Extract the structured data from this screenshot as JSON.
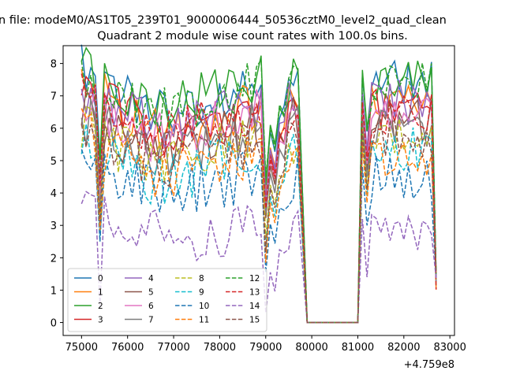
{
  "suptitle": "n file: modeM0/AS1T05_239T01_9000006444_50536cztM0_level2_quad_clean",
  "chart_data": {
    "type": "line",
    "title": "Quadrant 2 module wise count rates with 100.0s bins.",
    "xlabel": "",
    "ylabel": "",
    "x_offset_label": "+4.759e8",
    "xlim": [
      74600,
      83100
    ],
    "ylim": [
      -0.4,
      8.55
    ],
    "x_ticks": [
      75000,
      76000,
      77000,
      78000,
      79000,
      80000,
      81000,
      82000,
      83000
    ],
    "x_tick_labels": [
      "75000",
      "76000",
      "77000",
      "78000",
      "79000",
      "80000",
      "81000",
      "82000",
      "83000"
    ],
    "y_ticks": [
      0,
      1,
      2,
      3,
      4,
      5,
      6,
      7,
      8
    ],
    "y_tick_labels": [
      "0",
      "1",
      "2",
      "3",
      "4",
      "5",
      "6",
      "7",
      "8"
    ],
    "legend_position": "lower-left",
    "legend_columns": 4,
    "segments": [
      {
        "x_start": 75000,
        "x_end": 79700,
        "step": 100
      },
      {
        "x_start": 79900,
        "x_end": 81000,
        "step": 100
      },
      {
        "x_start": 81100,
        "x_end": 82700,
        "step": 100
      }
    ],
    "gap_level": 0,
    "series": [
      {
        "name": "0",
        "color": "#1f77b4",
        "dash": "solid",
        "levels": [
          7.8,
          6.5,
          6.7,
          7.4,
          7.2
        ]
      },
      {
        "name": "1",
        "color": "#ff7f0e",
        "dash": "solid",
        "levels": [
          7.5,
          5.9,
          6.0,
          6.7,
          6.9
        ]
      },
      {
        "name": "2",
        "color": "#2ca02c",
        "dash": "solid",
        "levels": [
          8.0,
          6.8,
          6.9,
          7.5,
          7.5
        ]
      },
      {
        "name": "3",
        "color": "#d62728",
        "dash": "solid",
        "levels": [
          7.4,
          5.9,
          5.9,
          6.6,
          6.6
        ]
      },
      {
        "name": "4",
        "color": "#9467bd",
        "dash": "solid",
        "levels": [
          7.0,
          6.1,
          6.2,
          6.8,
          6.7
        ]
      },
      {
        "name": "5",
        "color": "#8c564b",
        "dash": "solid",
        "levels": [
          6.6,
          5.5,
          5.6,
          6.2,
          6.3
        ]
      },
      {
        "name": "6",
        "color": "#e377c2",
        "dash": "solid",
        "levels": [
          6.8,
          5.7,
          5.8,
          6.4,
          6.5
        ]
      },
      {
        "name": "7",
        "color": "#7f7f7f",
        "dash": "solid",
        "levels": [
          6.3,
          5.3,
          5.4,
          6.0,
          6.0
        ]
      },
      {
        "name": "8",
        "color": "#bcbd22",
        "dash": "dashed",
        "levels": [
          6.0,
          4.9,
          5.0,
          5.7,
          5.6
        ]
      },
      {
        "name": "9",
        "color": "#17becf",
        "dash": "dashed",
        "levels": [
          5.6,
          4.4,
          4.5,
          5.4,
          5.2
        ]
      },
      {
        "name": "10",
        "color": "#1f77b4",
        "dash": "dashed",
        "levels": [
          4.9,
          4.2,
          4.1,
          4.5,
          4.4
        ]
      },
      {
        "name": "11",
        "color": "#ff7f0e",
        "dash": "dashed",
        "levels": [
          5.9,
          4.5,
          4.7,
          5.2,
          5.0
        ]
      },
      {
        "name": "12",
        "color": "#2ca02c",
        "dash": "dashed",
        "levels": [
          7.6,
          6.4,
          6.6,
          7.4,
          7.3
        ]
      },
      {
        "name": "13",
        "color": "#d62728",
        "dash": "dashed",
        "levels": [
          7.1,
          5.7,
          5.9,
          6.5,
          6.4
        ]
      },
      {
        "name": "14",
        "color": "#9467bd",
        "dash": "dashed",
        "levels": [
          3.6,
          2.8,
          2.6,
          2.9,
          3.0
        ]
      },
      {
        "name": "15",
        "color": "#8c564b",
        "dash": "dashed",
        "levels": [
          5.8,
          4.9,
          5.0,
          5.6,
          5.5
        ]
      }
    ]
  }
}
